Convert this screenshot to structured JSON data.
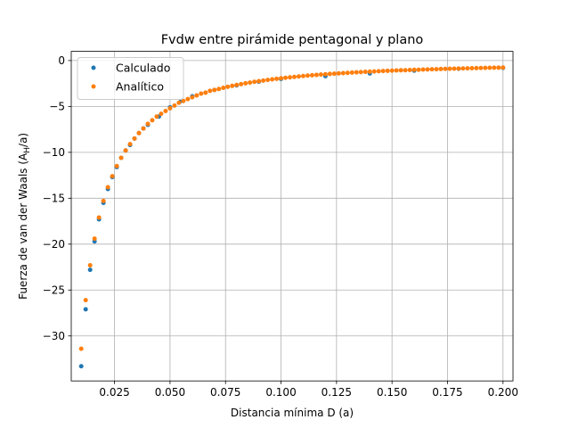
{
  "chart_data": {
    "type": "scatter",
    "title": "Fvdw entre pirámide pentagonal y plano",
    "xlabel": "Distancia mínima D (a)",
    "ylabel_prefix": "Fuerza de van der Waals (A",
    "ylabel_sub": "H",
    "ylabel_suffix": "/a)",
    "xlim": [
      0.0055,
      0.2045
    ],
    "ylim": [
      -34.9,
      1.0
    ],
    "xticks": [
      0.025,
      0.05,
      0.075,
      0.1,
      0.125,
      0.15,
      0.175,
      0.2
    ],
    "xtick_labels": [
      "0.025",
      "0.050",
      "0.075",
      "0.100",
      "0.125",
      "0.150",
      "0.175",
      "0.200"
    ],
    "yticks": [
      0,
      -5,
      -10,
      -15,
      -20,
      -25,
      -30
    ],
    "ytick_labels": [
      "0",
      "−5",
      "−10",
      "−15",
      "−20",
      "−25",
      "−30"
    ],
    "grid": true,
    "legend_position": "top-left",
    "series": [
      {
        "name": "Calculado",
        "color": "#1f77b4",
        "x": [
          0.01,
          0.012,
          0.014,
          0.016,
          0.018,
          0.02,
          0.022,
          0.024,
          0.026,
          0.028,
          0.03,
          0.032,
          0.034,
          0.036,
          0.038,
          0.04,
          0.045,
          0.05,
          0.055,
          0.06,
          0.07,
          0.08,
          0.09,
          0.1,
          0.12,
          0.14,
          0.16,
          0.18,
          0.2
        ],
        "y": [
          -33.3,
          -27.1,
          -22.8,
          -19.7,
          -17.3,
          -15.5,
          -14.0,
          -12.7,
          -11.6,
          -10.6,
          -9.8,
          -9.2,
          -8.5,
          -7.9,
          -7.4,
          -7.0,
          -6.1,
          -5.1,
          -4.4,
          -3.9,
          -3.2,
          -2.7,
          -2.3,
          -2.0,
          -1.7,
          -1.4,
          -1.1,
          -0.9,
          -0.8
        ]
      },
      {
        "name": "Analítico",
        "color": "#ff7f0e",
        "x": [
          0.01,
          0.012,
          0.014,
          0.016,
          0.018,
          0.02,
          0.022,
          0.024,
          0.026,
          0.028,
          0.03,
          0.032,
          0.034,
          0.036,
          0.038,
          0.04,
          0.042,
          0.044,
          0.046,
          0.048,
          0.05,
          0.052,
          0.054,
          0.056,
          0.058,
          0.06,
          0.062,
          0.064,
          0.066,
          0.068,
          0.07,
          0.072,
          0.074,
          0.076,
          0.078,
          0.08,
          0.082,
          0.084,
          0.086,
          0.088,
          0.09,
          0.092,
          0.094,
          0.096,
          0.098,
          0.1,
          0.102,
          0.104,
          0.106,
          0.108,
          0.11,
          0.112,
          0.114,
          0.116,
          0.118,
          0.12,
          0.122,
          0.124,
          0.126,
          0.128,
          0.13,
          0.132,
          0.134,
          0.136,
          0.138,
          0.14,
          0.142,
          0.144,
          0.146,
          0.148,
          0.15,
          0.152,
          0.154,
          0.156,
          0.158,
          0.16,
          0.162,
          0.164,
          0.166,
          0.168,
          0.17,
          0.172,
          0.174,
          0.176,
          0.178,
          0.18,
          0.182,
          0.184,
          0.186,
          0.188,
          0.19,
          0.192,
          0.194,
          0.196,
          0.198,
          0.2
        ],
        "y": [
          -31.4,
          -26.1,
          -22.3,
          -19.4,
          -17.1,
          -15.3,
          -13.8,
          -12.6,
          -11.5,
          -10.6,
          -9.8,
          -9.1,
          -8.5,
          -7.9,
          -7.4,
          -6.9,
          -6.5,
          -6.1,
          -5.8,
          -5.5,
          -5.2,
          -4.9,
          -4.6,
          -4.4,
          -4.2,
          -4.0,
          -3.8,
          -3.6,
          -3.5,
          -3.3,
          -3.2,
          -3.1,
          -2.97,
          -2.86,
          -2.76,
          -2.66,
          -2.57,
          -2.48,
          -2.4,
          -2.32,
          -2.25,
          -2.18,
          -2.11,
          -2.05,
          -1.99,
          -1.93,
          -1.88,
          -1.83,
          -1.78,
          -1.73,
          -1.69,
          -1.64,
          -1.6,
          -1.57,
          -1.53,
          -1.49,
          -1.46,
          -1.43,
          -1.4,
          -1.37,
          -1.34,
          -1.31,
          -1.28,
          -1.26,
          -1.23,
          -1.21,
          -1.19,
          -1.16,
          -1.14,
          -1.12,
          -1.1,
          -1.08,
          -1.06,
          -1.05,
          -1.03,
          -1.01,
          -1.0,
          -0.98,
          -0.97,
          -0.95,
          -0.94,
          -0.92,
          -0.91,
          -0.9,
          -0.88,
          -0.87,
          -0.86,
          -0.85,
          -0.84,
          -0.82,
          -0.81,
          -0.8,
          -0.79,
          -0.78,
          -0.77,
          -0.76
        ]
      }
    ]
  }
}
